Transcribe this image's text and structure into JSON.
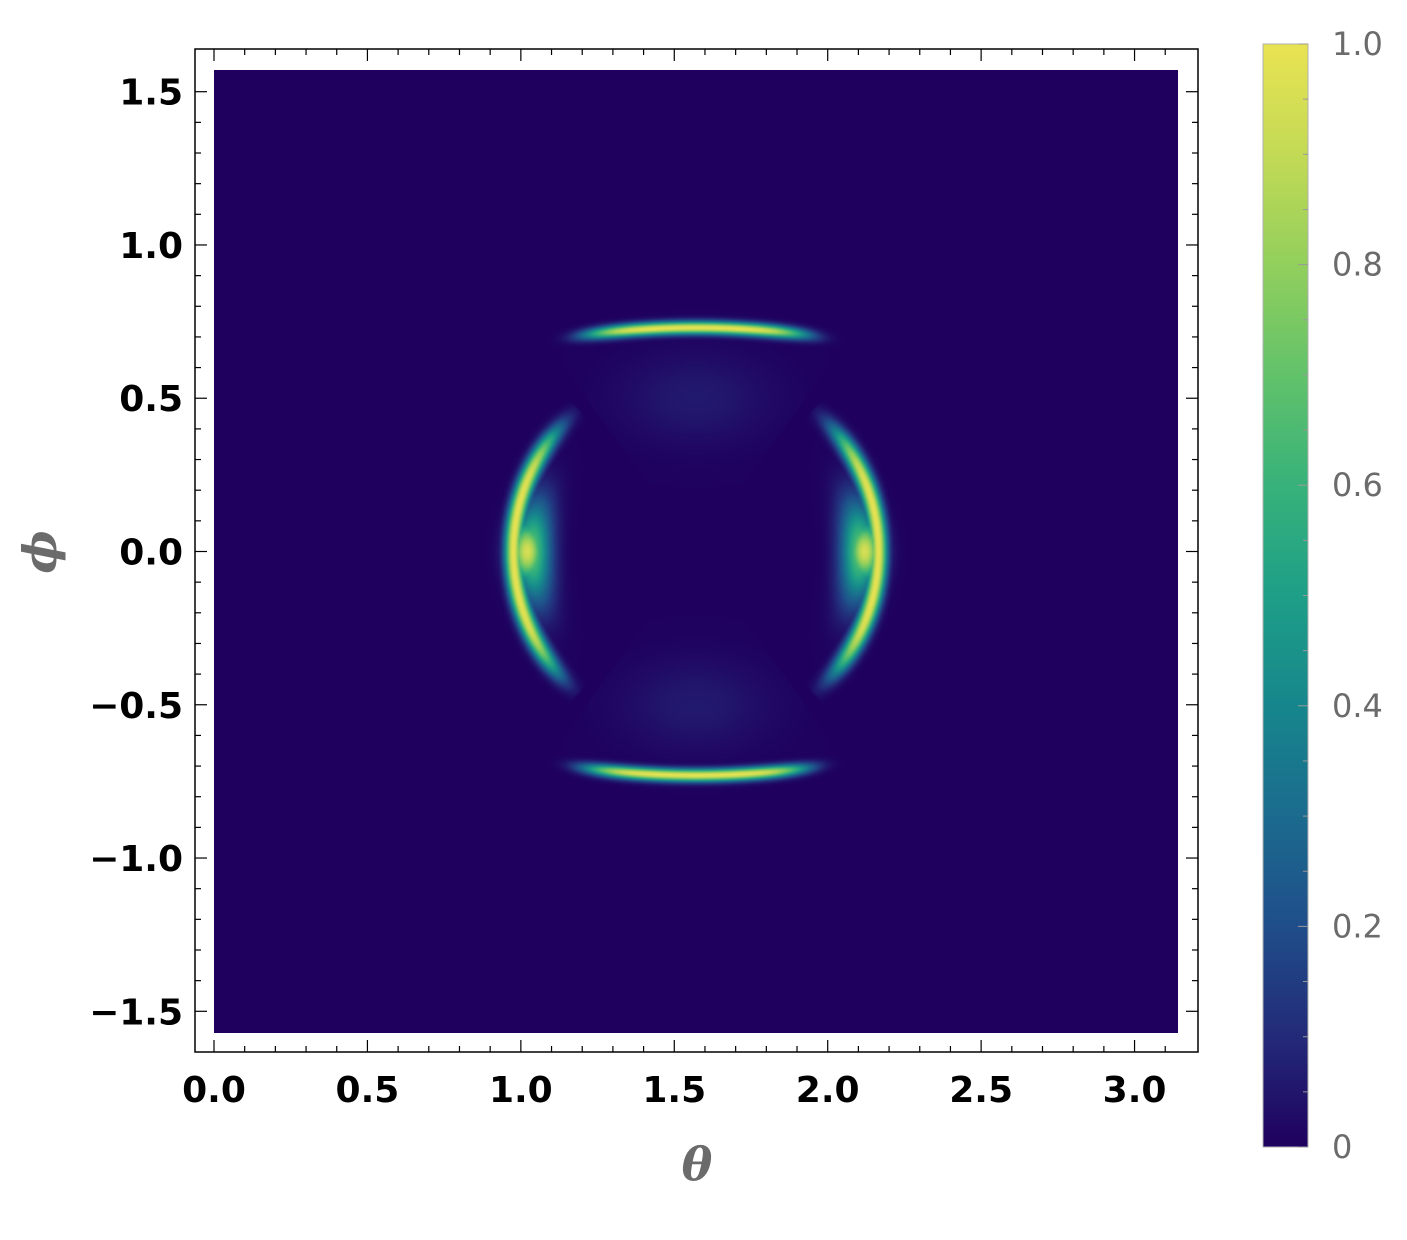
{
  "chart_data": {
    "type": "heatmap",
    "title": "",
    "xlabel": "θ",
    "ylabel": "ϕ",
    "xlim": [
      0,
      3.1416
    ],
    "ylim": [
      -1.5708,
      1.5708
    ],
    "x_ticks": [
      0.0,
      0.5,
      1.0,
      1.5,
      2.0,
      2.5,
      3.0
    ],
    "x_tick_labels": [
      "0.0",
      "0.5",
      "1.0",
      "1.5",
      "2.0",
      "2.5",
      "3.0"
    ],
    "y_ticks": [
      -1.5,
      -1.0,
      -0.5,
      0.0,
      0.5,
      1.0,
      1.5
    ],
    "y_tick_labels": [
      "−1.5",
      "−1.0",
      "−0.5",
      "0.0",
      "0.5",
      "1.0",
      "1.5"
    ],
    "colorbar": {
      "range": [
        0,
        1
      ],
      "ticks": [
        0,
        0.2,
        0.4,
        0.6,
        0.8,
        1.0
      ],
      "tick_labels": [
        "0",
        "0.2",
        "0.4",
        "0.6",
        "0.8",
        "1.0"
      ],
      "colormap": "viridis"
    },
    "features": [
      {
        "shape": "arc",
        "center_theta": 1.5708,
        "phi": 0.73,
        "theta_span": [
          1.15,
          2.0
        ],
        "peak": 1.0
      },
      {
        "shape": "arc",
        "center_theta": 1.5708,
        "phi": -0.73,
        "theta_span": [
          1.15,
          2.0
        ],
        "peak": 1.0
      },
      {
        "shape": "crescent",
        "theta": 0.97,
        "phi_span": [
          -0.55,
          0.55
        ],
        "peak": 1.0
      },
      {
        "shape": "crescent",
        "theta": 2.17,
        "phi_span": [
          -0.55,
          0.55
        ],
        "peak": 1.0
      }
    ],
    "background_value": 0.0,
    "grid": false
  },
  "colors": {
    "background_cell": "#1f005f",
    "frame": "#000000",
    "cb_text": "#6b6b6b"
  }
}
